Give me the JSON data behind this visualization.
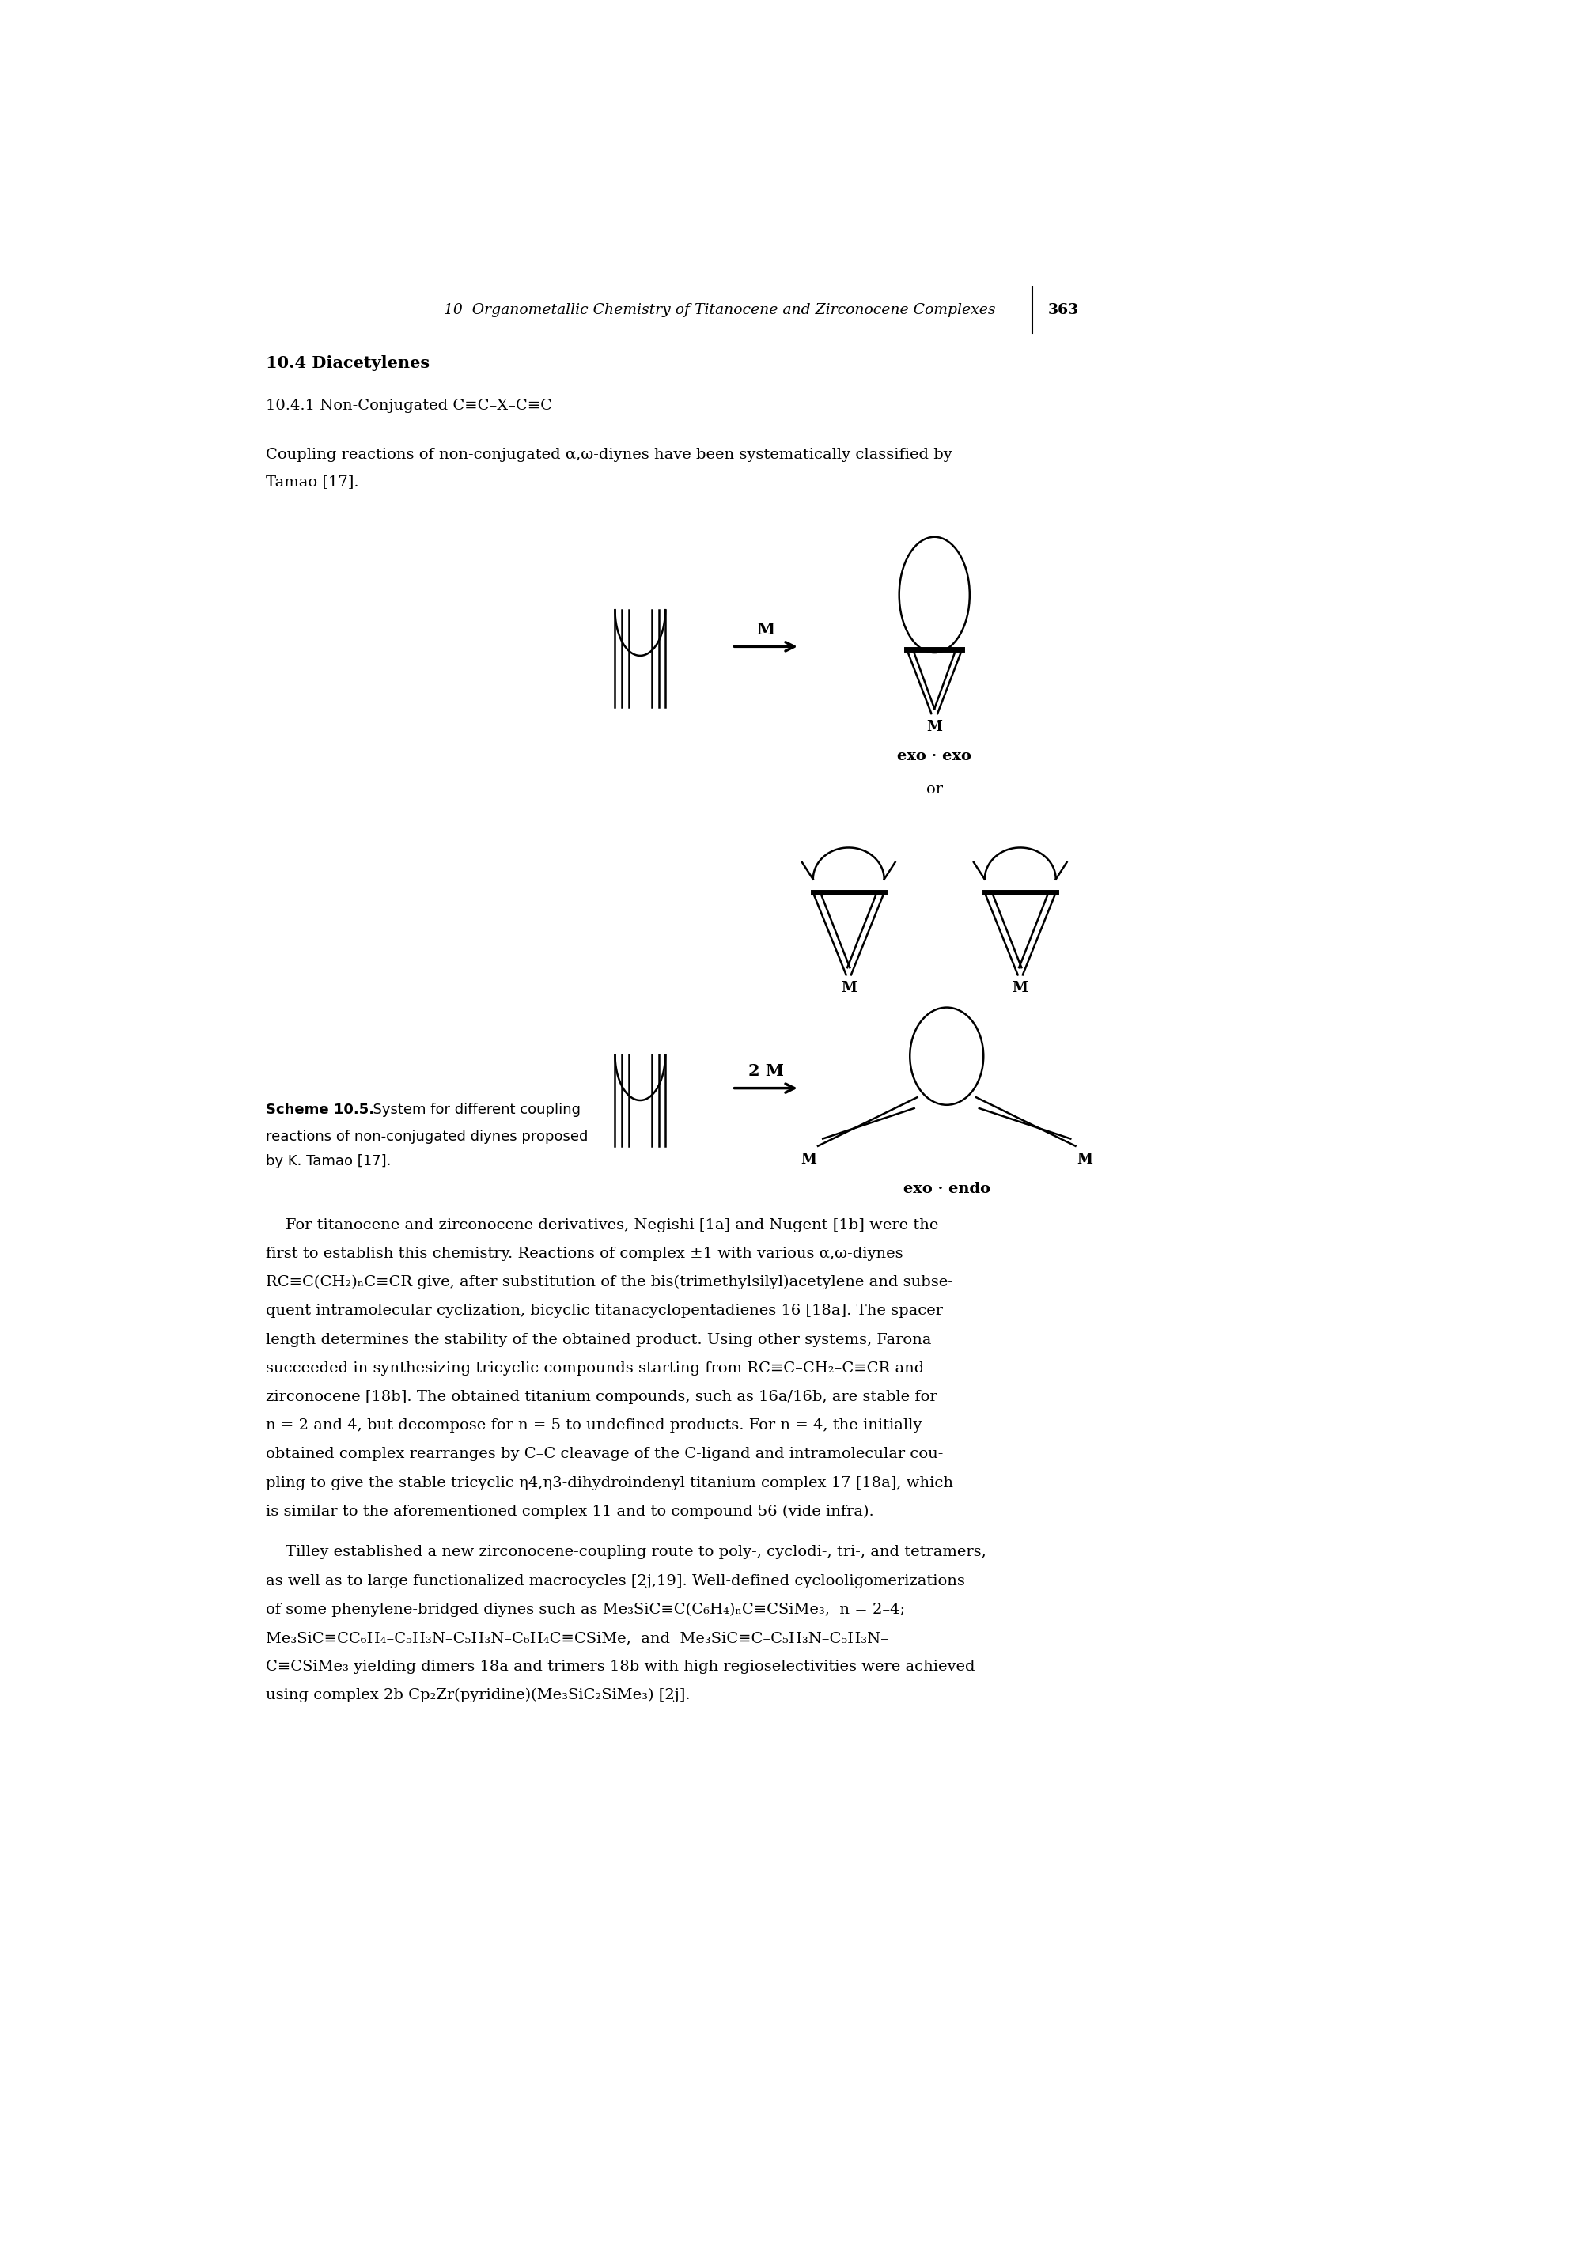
{
  "bg_color": "#ffffff",
  "header_italic": "10  Organometallic Chemistry of Titanocene and Zirconocene Complexes",
  "header_page": "363",
  "section_bold": "10.4 Diacetylenes",
  "subsection": "10.4.1 Non-Conjugated C≡C–X–C≡C",
  "body_text_1": "Coupling reactions of non-conjugated α,ω-diynes have been systematically classified by",
  "body_text_2": "Tamao [17].",
  "scheme_label": "Scheme 10.5.",
  "scheme_desc": "  System for different coupling",
  "scheme_desc2": "reactions of non-conjugated diynes proposed",
  "scheme_desc3": "by K. Tamao [17].",
  "label_exo_exo": "exo · exo",
  "label_or": "or",
  "label_exo_endo": "exo · endo",
  "label_M": "M",
  "label_2M": "2 M",
  "para1_line1": "    For titanocene and zirconocene derivatives, Negishi [1a] and Nugent [1b] were the",
  "para1_line2": "first to establish this chemistry. Reactions of complex ±1 with various α,ω-diynes",
  "para1_line3": "RC≡C(CH₂)ₙC≡CR give, after substitution of the bis(trimethylsilyl)acetylene and subse-",
  "para1_line4": "quent intramolecular cyclization, bicyclic titanacyclopentadienes 16 [18a]. The spacer",
  "para1_line5": "length determines the stability of the obtained product. Using other systems, Farona",
  "para1_line6": "succeeded in synthesizing tricyclic compounds starting from RC≡C–CH₂–C≡CR and",
  "para1_line7": "zirconocene [18b]. The obtained titanium compounds, such as 16a/16b, are stable for",
  "para1_line8": "n = 2 and 4, but decompose for n = 5 to undefined products. For n = 4, the initially",
  "para1_line9": "obtained complex rearranges by C–C cleavage of the C-ligand and intramolecular cou-",
  "para1_line10": "pling to give the stable tricyclic η4,η3-dihydroindenyl titanium complex 17 [18a], which",
  "para1_line11": "is similar to the aforementioned complex 11 and to compound 56 (vide infra).",
  "para2_line1": "    Tilley established a new zirconocene-coupling route to poly-, cyclodi-, tri-, and tetramers,",
  "para2_line2": "as well as to large functionalized macrocycles [2j,19]. Well-defined cyclooligomerizations",
  "para2_line3": "of some phenylene-bridged diynes such as Me₃SiC≡C(C₆H₄)ₙC≡CSiMe₃,  n = 2–4;",
  "para2_line4": "Me₃SiC≡CC₆H₄–C₅H₃N–C₅H₃N–C₆H₄C≡CSiMe,  and  Me₃SiC≡C–C₅H₃N–C₅H₃N–",
  "para2_line5": "C≡CSiMe₃ yielding dimers 18a and trimers 18b with high regioselectivities were achieved",
  "para2_line6": "using complex 2b Cp₂Zr(pyridine)(Me₃SiC₂SiMe₃) [2j]."
}
